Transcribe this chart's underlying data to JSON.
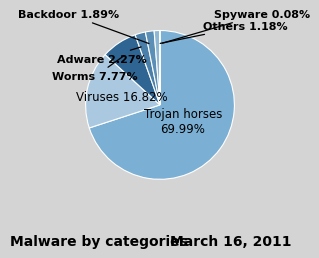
{
  "categories": [
    "Trojan horses",
    "Viruses",
    "Worms",
    "Adware",
    "Backdoor",
    "Others",
    "Spyware"
  ],
  "values": [
    69.99,
    16.82,
    7.77,
    2.27,
    1.89,
    1.18,
    0.08
  ],
  "colors": [
    "#7bafd4",
    "#aac8e0",
    "#2e6593",
    "#4a7faa",
    "#5b8fb5",
    "#8fb8d4",
    "#b0cfe0"
  ],
  "title": "Malware by categories",
  "date": "March 16, 2011",
  "title_fontsize": 10,
  "date_fontsize": 10,
  "label_fontsize": 8,
  "background_color": "#d4d4d4",
  "annot_labels": [
    "Worms 7.77%",
    "Adware 2.27%",
    "Backdoor 1.89%",
    "Spyware 0.08%",
    "Others 1.18%"
  ],
  "annot_cats": [
    "Worms",
    "Adware",
    "Backdoor",
    "Spyware",
    "Others"
  ],
  "trojan_label": "Trojan horses\n69.99%",
  "virus_label": "Viruses 16.82%"
}
